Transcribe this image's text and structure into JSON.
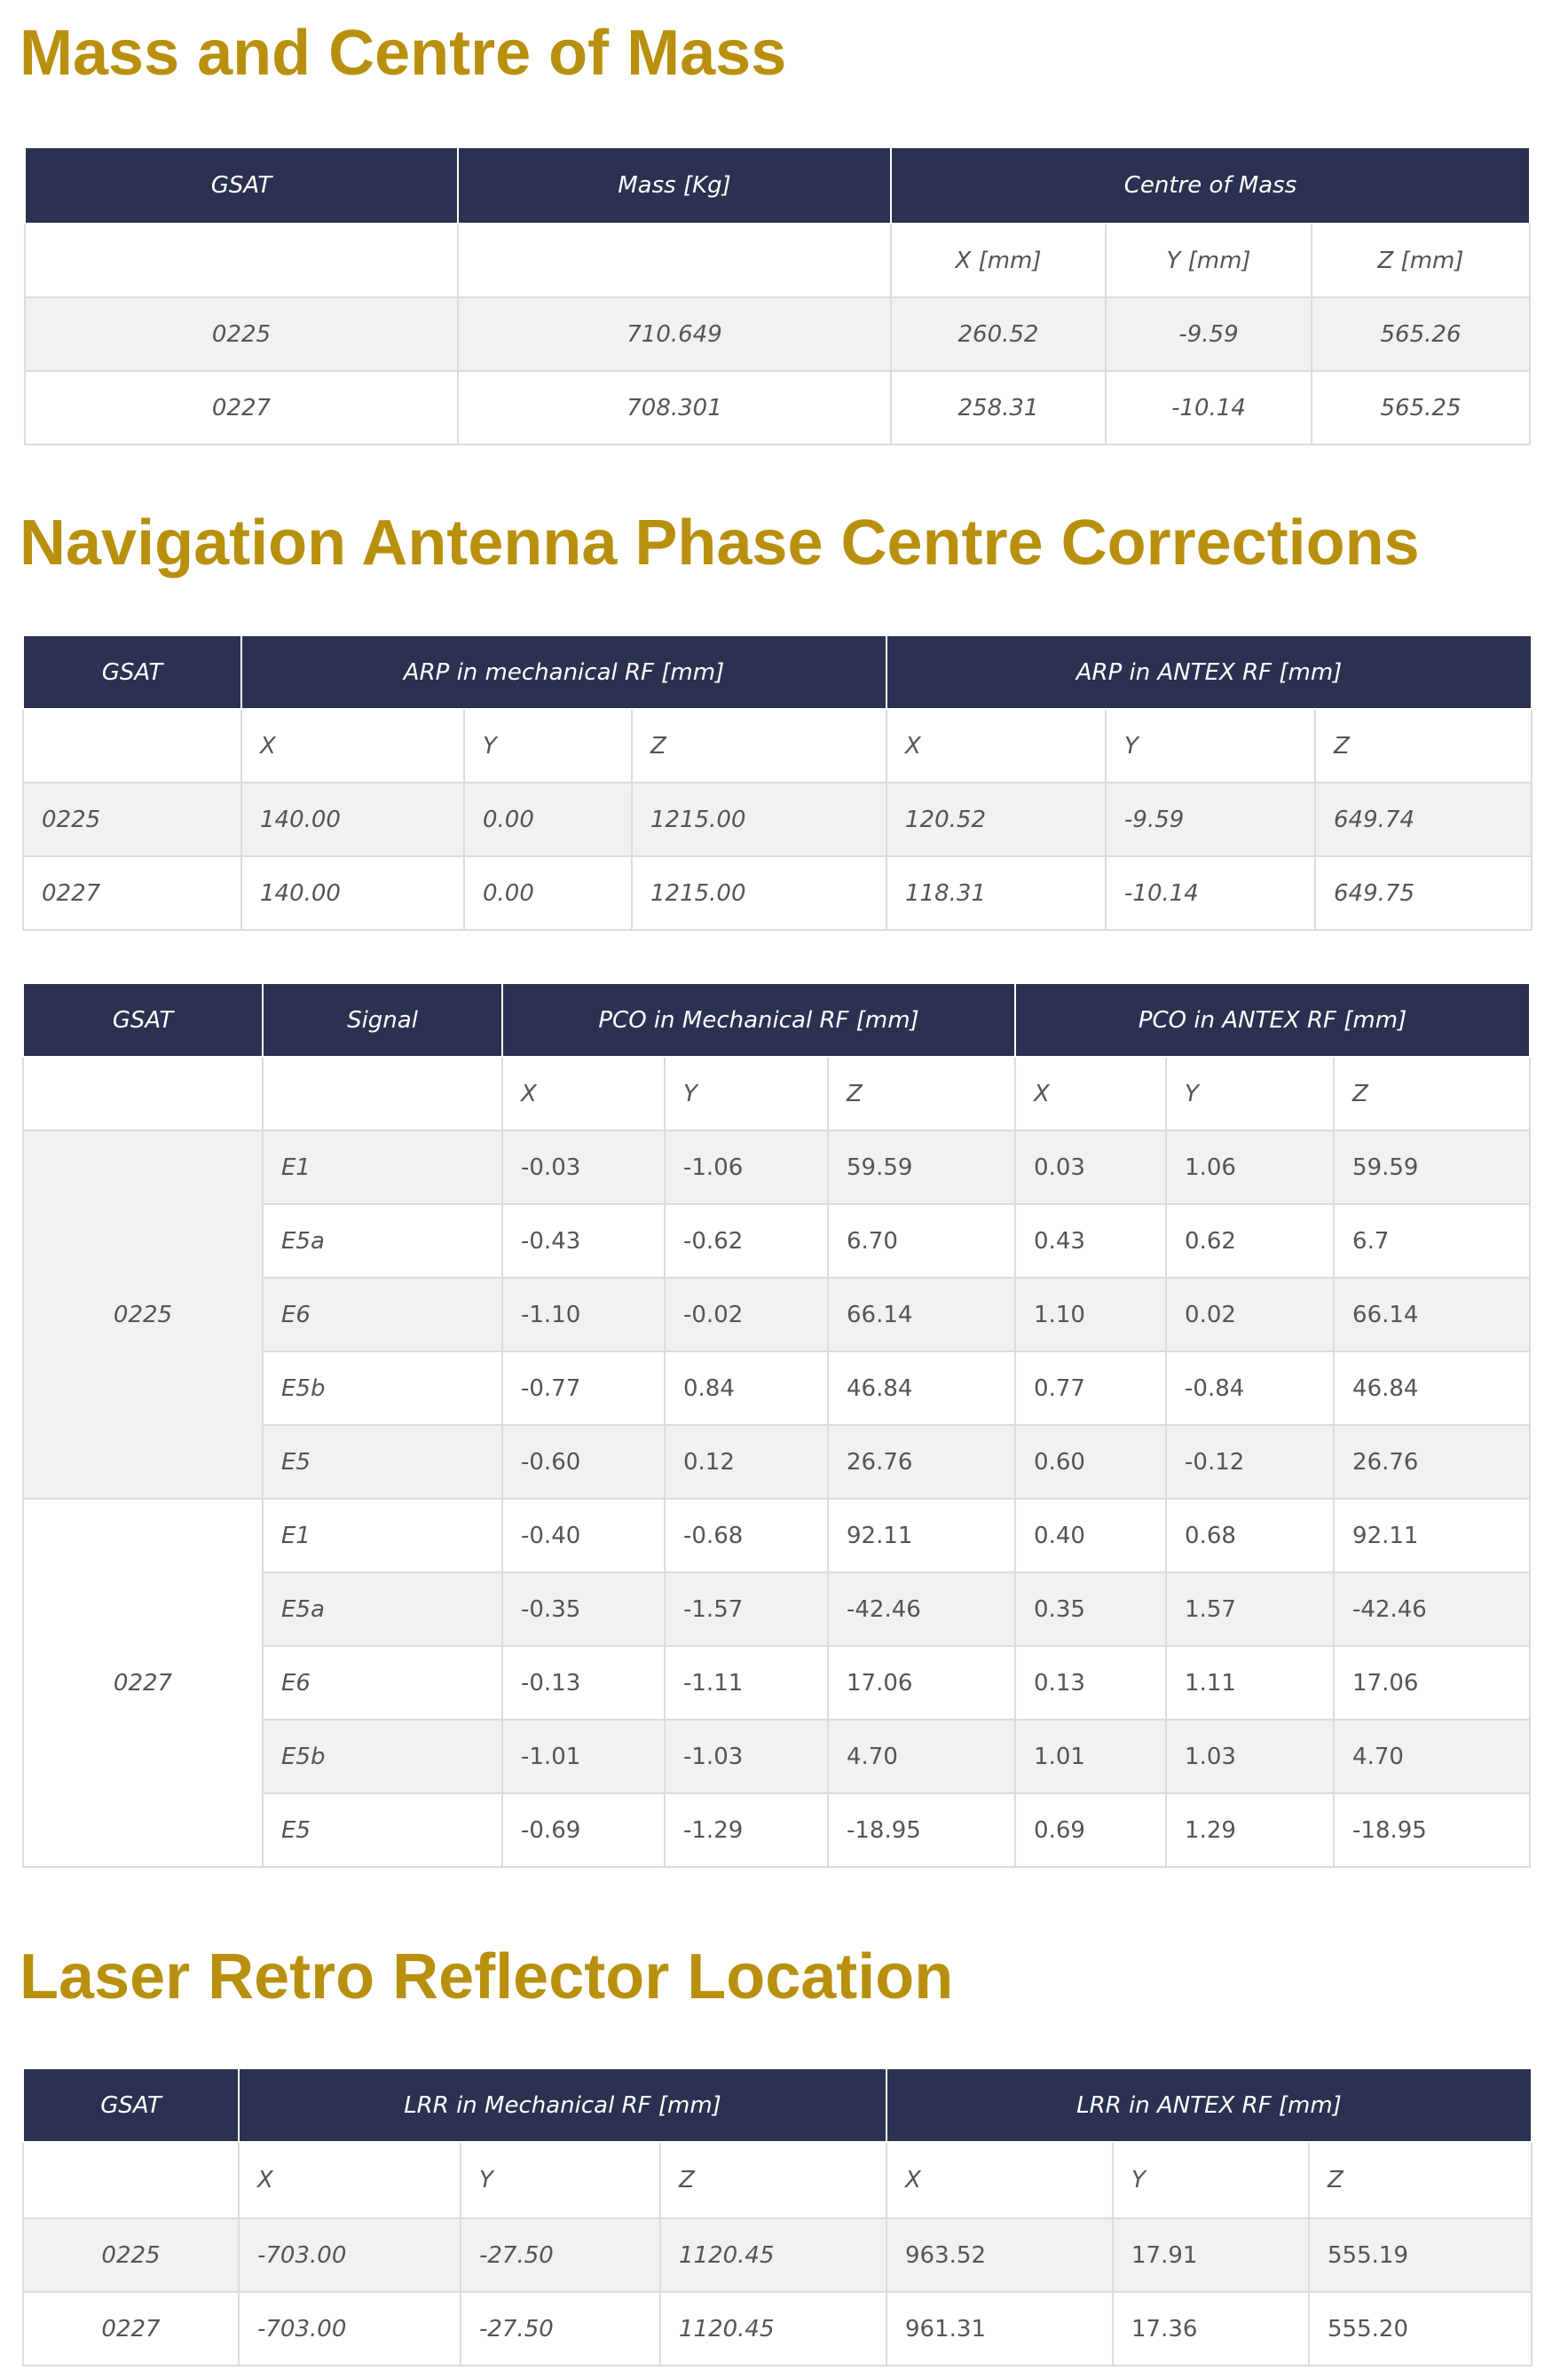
{
  "mass": {
    "title": "Mass and Centre of Mass",
    "headers": [
      "GSAT",
      "Mass [Kg]",
      "Centre of Mass"
    ],
    "subheaders": [
      "",
      "",
      "X [mm]",
      "Y [mm]",
      "Z [mm]"
    ],
    "rows": [
      [
        "0225",
        "710.649",
        "260.52",
        "-9.59",
        "565.26"
      ],
      [
        "0227",
        "708.301",
        "258.31",
        "-10.14",
        "565.25"
      ]
    ]
  },
  "nav": {
    "title": "Navigation Antenna Phase Centre Corrections",
    "arp": {
      "headers": [
        "GSAT",
        "ARP in mechanical RF [mm]",
        "ARP in ANTEX RF [mm]"
      ],
      "subheaders": [
        "",
        "X",
        "Y",
        "Z",
        "X",
        "Y",
        "Z"
      ],
      "rows": [
        [
          "0225",
          "140.00",
          "0.00",
          "1215.00",
          "120.52",
          "-9.59",
          "649.74"
        ],
        [
          "0227",
          "140.00",
          "0.00",
          "1215.00",
          "118.31",
          "-10.14",
          "649.75"
        ]
      ]
    },
    "pco": {
      "headers": [
        "GSAT",
        "Signal",
        "PCO in Mechanical RF [mm]",
        "PCO in ANTEX RF [mm]"
      ],
      "subheaders": [
        "",
        "",
        "X",
        "Y",
        "Z",
        "X",
        "Y",
        "Z"
      ],
      "groups": [
        {
          "gsat": "0225",
          "rows": [
            [
              "E1",
              "-0.03",
              "-1.06",
              "59.59",
              "0.03",
              "1.06",
              "59.59"
            ],
            [
              "E5a",
              "-0.43",
              "-0.62",
              "6.70",
              "0.43",
              "0.62",
              "6.7"
            ],
            [
              "E6",
              "-1.10",
              "-0.02",
              "66.14",
              "1.10",
              "0.02",
              "66.14"
            ],
            [
              "E5b",
              "-0.77",
              "0.84",
              "46.84",
              "0.77",
              "-0.84",
              "46.84"
            ],
            [
              "E5",
              "-0.60",
              "0.12",
              "26.76",
              "0.60",
              "-0.12",
              "26.76"
            ]
          ]
        },
        {
          "gsat": "0227",
          "rows": [
            [
              "E1",
              "-0.40",
              "-0.68",
              "92.11",
              "0.40",
              "0.68",
              "92.11"
            ],
            [
              "E5a",
              "-0.35",
              "-1.57",
              "-42.46",
              "0.35",
              "1.57",
              "-42.46"
            ],
            [
              "E6",
              "-0.13",
              "-1.11",
              "17.06",
              "0.13",
              "1.11",
              "17.06"
            ],
            [
              "E5b",
              "-1.01",
              "-1.03",
              "4.70",
              "1.01",
              "1.03",
              "4.70"
            ],
            [
              "E5",
              "-0.69",
              "-1.29",
              "-18.95",
              "0.69",
              "1.29",
              "-18.95"
            ]
          ]
        }
      ]
    }
  },
  "lrr": {
    "title": "Laser Retro Reflector Location",
    "headers": [
      "GSAT",
      "LRR in Mechanical RF [mm]",
      "LRR in ANTEX RF [mm]"
    ],
    "subheaders": [
      "",
      "X",
      "Y",
      "Z",
      "X",
      "Y",
      "Z"
    ],
    "rows": [
      [
        "0225",
        "-703.00",
        "-27.50",
        "1120.45",
        "963.52",
        "17.91",
        "555.19"
      ],
      [
        "0227",
        "-703.00",
        "-27.50",
        "1120.45",
        "961.31",
        "17.36",
        "555.20"
      ]
    ]
  }
}
